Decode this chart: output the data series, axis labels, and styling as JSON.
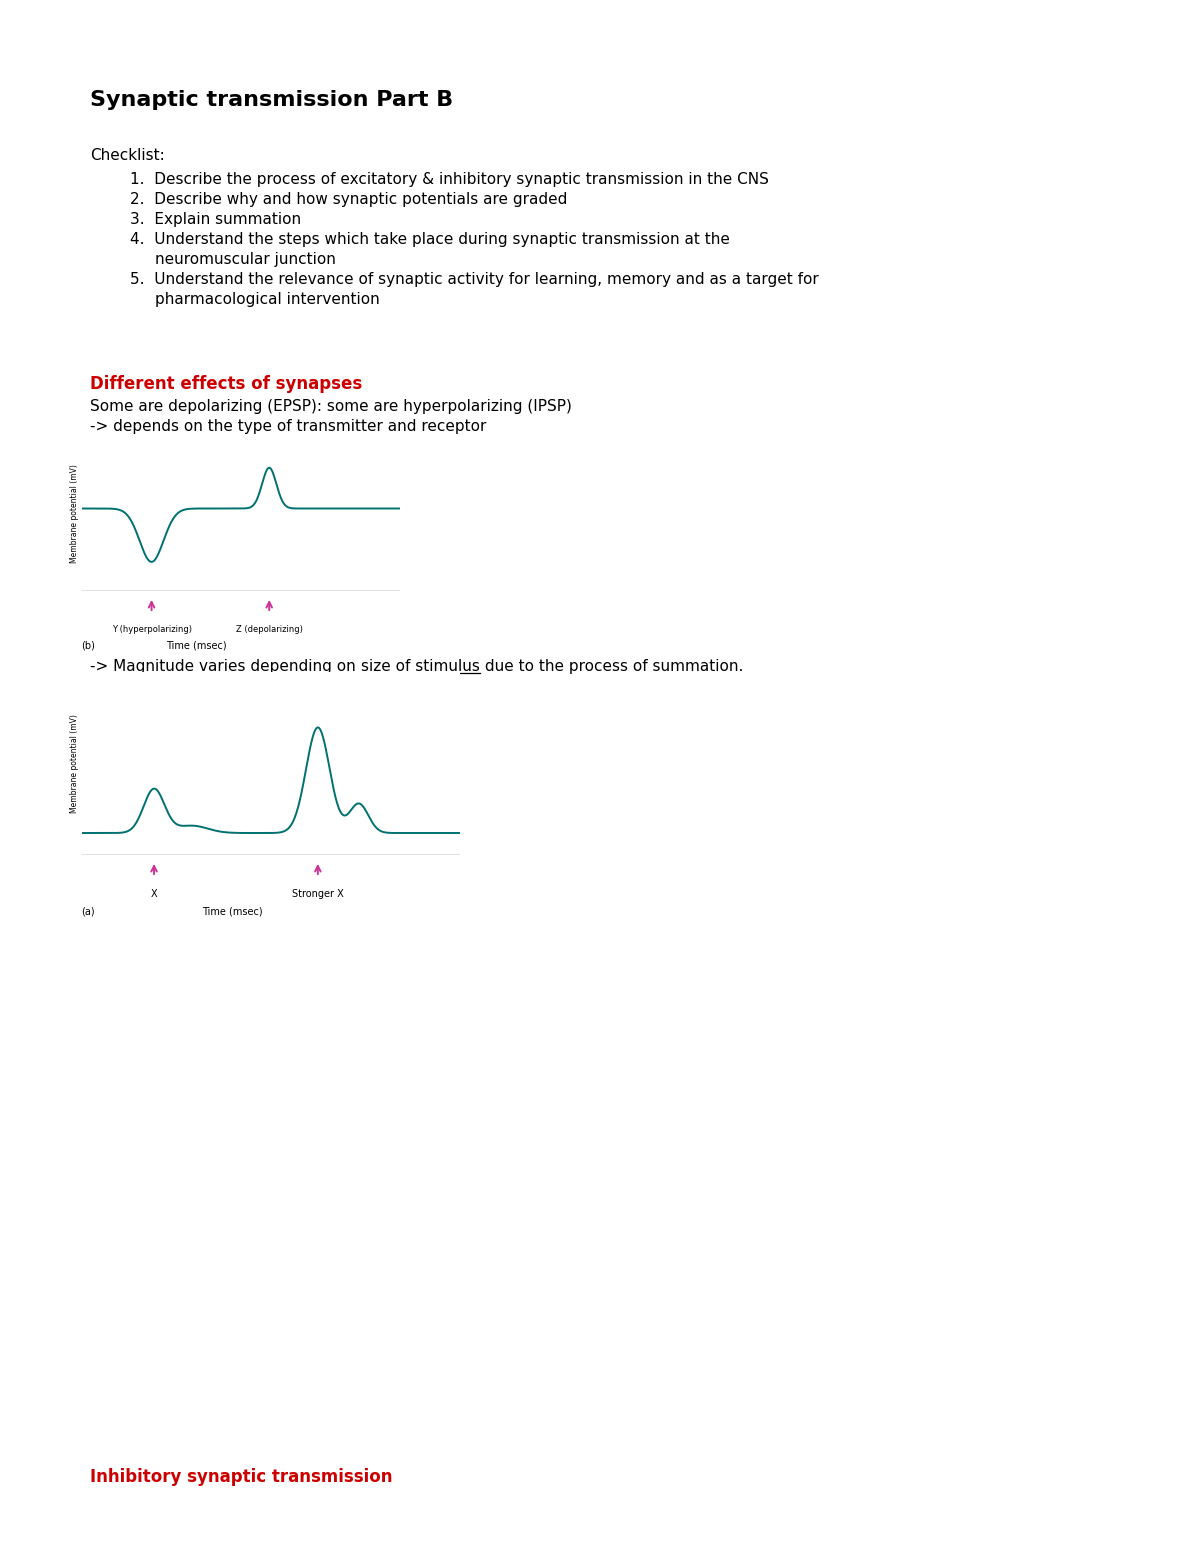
{
  "title": "Synaptic transmission Part B",
  "background_color": "#ffffff",
  "checklist_label": "Checklist:",
  "checklist_items": [
    "Describe the process of excitatory & inhibitory synaptic transmission in the CNS",
    "Describe why and how synaptic potentials are graded",
    "Explain summation",
    "Understand the steps which take place during synaptic transmission at the\nneuromuscular junction",
    "Understand the relevance of synaptic activity for learning, memory and as a target for\npharmacological intervention"
  ],
  "section1_title": "Different effects of synapses",
  "section1_title_color": "#cc0000",
  "section1_line1": "Some are depolarizing (EPSP): some are hyperpolarizing (IPSP)",
  "section1_line2": "-> depends on the type of transmitter and receptor",
  "graph_b_ylabel": "Membrane potential (mV)",
  "graph_b_arrow1_label": "Y (hyperpolarizing)",
  "graph_b_arrow2_label": "Z (depolarizing)",
  "graph_b_label": "(b)",
  "graph_b_xlabel": "Time (msec)",
  "mag_before": "-> Magnitude varies depending on ",
  "mag_underlined": "size of stimulus",
  "mag_after": " due to the process of summation.",
  "graph_a_ylabel": "Membrane potential (mV)",
  "graph_a_arrow1_label": "X",
  "graph_a_arrow2_label": "Stronger X",
  "graph_a_label": "(a)",
  "graph_a_xlabel": "Time (msec)",
  "section2_title": "Inhibitory synaptic transmission",
  "section2_title_color": "#cc0000",
  "teal_color": "#007070",
  "arrow_color": "#cc3399",
  "font_size_title": 16,
  "font_size_body": 11,
  "font_size_small": 9
}
